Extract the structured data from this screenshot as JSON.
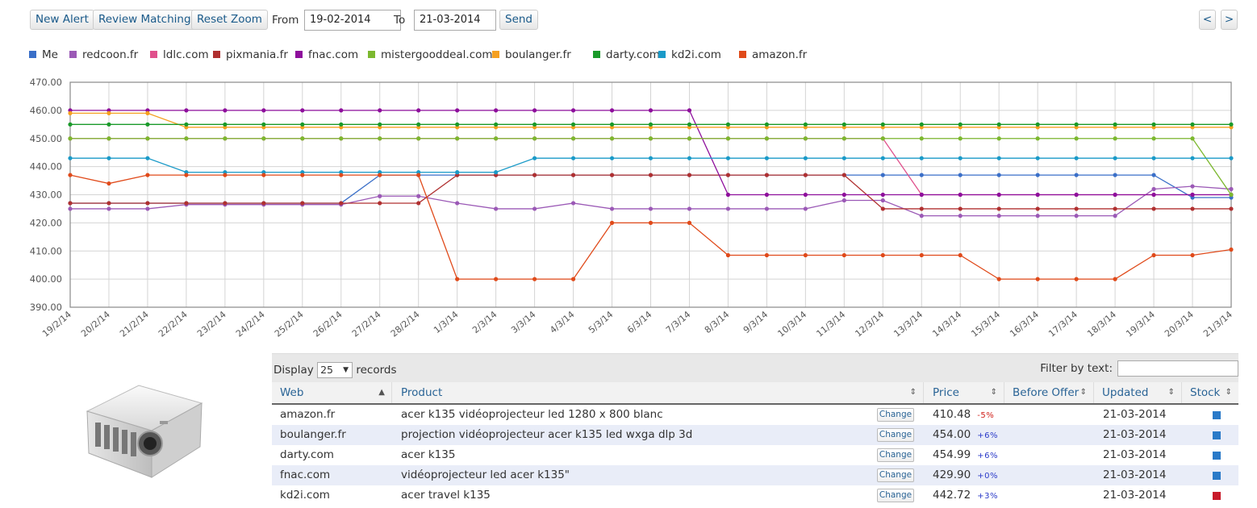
{
  "toolbar": {
    "new_alert": "New Alert",
    "review_matching": "Review Matching",
    "reset_zoom": "Reset Zoom",
    "from_label": "From",
    "from_value": "19-02-2014",
    "to_label": "To",
    "to_value": "21-03-2014",
    "send": "Send",
    "prev": "<",
    "next": ">"
  },
  "chart_data": {
    "type": "line",
    "ylim": [
      390,
      470
    ],
    "y_ticks": [
      "390.00",
      "400.00",
      "410.00",
      "420.00",
      "430.00",
      "440.00",
      "450.00",
      "460.00",
      "470.00"
    ],
    "grid": true,
    "legend_position": "top",
    "x": [
      "19/2/14",
      "20/2/14",
      "21/2/14",
      "22/2/14",
      "23/2/14",
      "24/2/14",
      "25/2/14",
      "26/2/14",
      "27/2/14",
      "28/2/14",
      "1/3/14",
      "2/3/14",
      "3/3/14",
      "4/3/14",
      "5/3/14",
      "6/3/14",
      "7/3/14",
      "8/3/14",
      "9/3/14",
      "10/3/14",
      "11/3/14",
      "12/3/14",
      "13/3/14",
      "14/3/14",
      "15/3/14",
      "16/3/14",
      "17/3/14",
      "18/3/14",
      "19/3/14",
      "20/3/14",
      "21/3/14"
    ],
    "series": [
      {
        "name": "Me",
        "color": "#3a6fc8",
        "values": [
          427,
          427,
          427,
          427,
          427,
          427,
          427,
          427,
          437,
          437,
          437,
          437,
          437,
          437,
          437,
          437,
          437,
          437,
          437,
          437,
          437,
          437,
          437,
          437,
          437,
          437,
          437,
          437,
          437,
          429,
          429
        ]
      },
      {
        "name": "redcoon.fr",
        "color": "#9b59b6",
        "values": [
          425,
          425,
          425,
          426.5,
          426.5,
          426.5,
          426.5,
          426.5,
          429.5,
          429.5,
          427,
          425,
          425,
          427,
          425,
          425,
          425,
          425,
          425,
          425,
          428,
          428,
          422.5,
          422.5,
          422.5,
          422.5,
          422.5,
          422.5,
          432,
          433,
          432
        ]
      },
      {
        "name": "ldlc.com",
        "color": "#e0508c",
        "values": [
          450,
          450,
          450,
          450,
          450,
          450,
          450,
          450,
          450,
          450,
          450,
          450,
          450,
          450,
          450,
          450,
          450,
          450,
          450,
          450,
          450,
          450,
          430,
          430,
          430,
          430,
          430,
          430,
          430,
          430,
          430
        ]
      },
      {
        "name": "pixmania.fr",
        "color": "#b03030",
        "values": [
          427,
          427,
          427,
          427,
          427,
          427,
          427,
          427,
          427,
          427,
          437,
          437,
          437,
          437,
          437,
          437,
          437,
          437,
          437,
          437,
          437,
          425,
          425,
          425,
          425,
          425,
          425,
          425,
          425,
          425,
          425
        ]
      },
      {
        "name": "fnac.com",
        "color": "#8e0f9c",
        "values": [
          460,
          460,
          460,
          460,
          460,
          460,
          460,
          460,
          460,
          460,
          460,
          460,
          460,
          460,
          460,
          460,
          460,
          430,
          430,
          430,
          430,
          430,
          430,
          430,
          430,
          430,
          430,
          430,
          430,
          430,
          430
        ]
      },
      {
        "name": "mistergooddeal.com",
        "color": "#7cb82f",
        "values": [
          450,
          450,
          450,
          450,
          450,
          450,
          450,
          450,
          450,
          450,
          450,
          450,
          450,
          450,
          450,
          450,
          450,
          450,
          450,
          450,
          450,
          450,
          450,
          450,
          450,
          450,
          450,
          450,
          450,
          450,
          430
        ]
      },
      {
        "name": "boulanger.fr",
        "color": "#f5a020",
        "values": [
          459,
          459,
          459,
          454,
          454,
          454,
          454,
          454,
          454,
          454,
          454,
          454,
          454,
          454,
          454,
          454,
          454,
          454,
          454,
          454,
          454,
          454,
          454,
          454,
          454,
          454,
          454,
          454,
          454,
          454,
          454
        ]
      },
      {
        "name": "darty.com",
        "color": "#1a9a2a",
        "values": [
          455,
          455,
          455,
          455,
          455,
          455,
          455,
          455,
          455,
          455,
          455,
          455,
          455,
          455,
          455,
          455,
          455,
          455,
          455,
          455,
          455,
          455,
          455,
          455,
          455,
          455,
          455,
          455,
          455,
          455,
          455
        ]
      },
      {
        "name": "kd2i.com",
        "color": "#1a9ac8",
        "values": [
          443,
          443,
          443,
          438,
          438,
          438,
          438,
          438,
          438,
          438,
          438,
          438,
          443,
          443,
          443,
          443,
          443,
          443,
          443,
          443,
          443,
          443,
          443,
          443,
          443,
          443,
          443,
          443,
          443,
          443,
          443
        ]
      },
      {
        "name": "amazon.fr",
        "color": "#e04a1a",
        "values": [
          437,
          434,
          437,
          437,
          437,
          437,
          437,
          437,
          437,
          437,
          400,
          400,
          400,
          400,
          420,
          420,
          420,
          408.5,
          408.5,
          408.5,
          408.5,
          408.5,
          408.5,
          408.5,
          400,
          400,
          400,
          400,
          408.5,
          408.5,
          410.5
        ]
      }
    ]
  },
  "table": {
    "display_label": "Display",
    "records_label": "records",
    "page_size": "25",
    "filter_label": "Filter by text:",
    "columns": [
      "Web",
      "Product",
      "Price",
      "Before Offer",
      "Updated",
      "Stock"
    ],
    "change_label": "Change",
    "rows": [
      {
        "web": "amazon.fr",
        "product": "acer k135 vidéoprojecteur led 1280 x 800 blanc",
        "price": "410.48",
        "pct": "-5%",
        "pct_color": "#d0201a",
        "before": "",
        "updated": "21-03-2014",
        "stock_color": "#2a7ac8"
      },
      {
        "web": "boulanger.fr",
        "product": "projection vidéoprojecteur acer k135 led wxga dlp 3d",
        "price": "454.00",
        "pct": "+6%",
        "pct_color": "#2a3ac8",
        "before": "",
        "updated": "21-03-2014",
        "stock_color": "#2a7ac8"
      },
      {
        "web": "darty.com",
        "product": "acer k135",
        "price": "454.99",
        "pct": "+6%",
        "pct_color": "#2a3ac8",
        "before": "",
        "updated": "21-03-2014",
        "stock_color": "#2a7ac8"
      },
      {
        "web": "fnac.com",
        "product": "vidéoprojecteur led acer k135\"",
        "price": "429.90",
        "pct": "+0%",
        "pct_color": "#2a3ac8",
        "before": "",
        "updated": "21-03-2014",
        "stock_color": "#2a7ac8"
      },
      {
        "web": "kd2i.com",
        "product": "acer travel k135",
        "price": "442.72",
        "pct": "+3%",
        "pct_color": "#2a3ac8",
        "before": "",
        "updated": "21-03-2014",
        "stock_color": "#c81a2a"
      }
    ]
  }
}
